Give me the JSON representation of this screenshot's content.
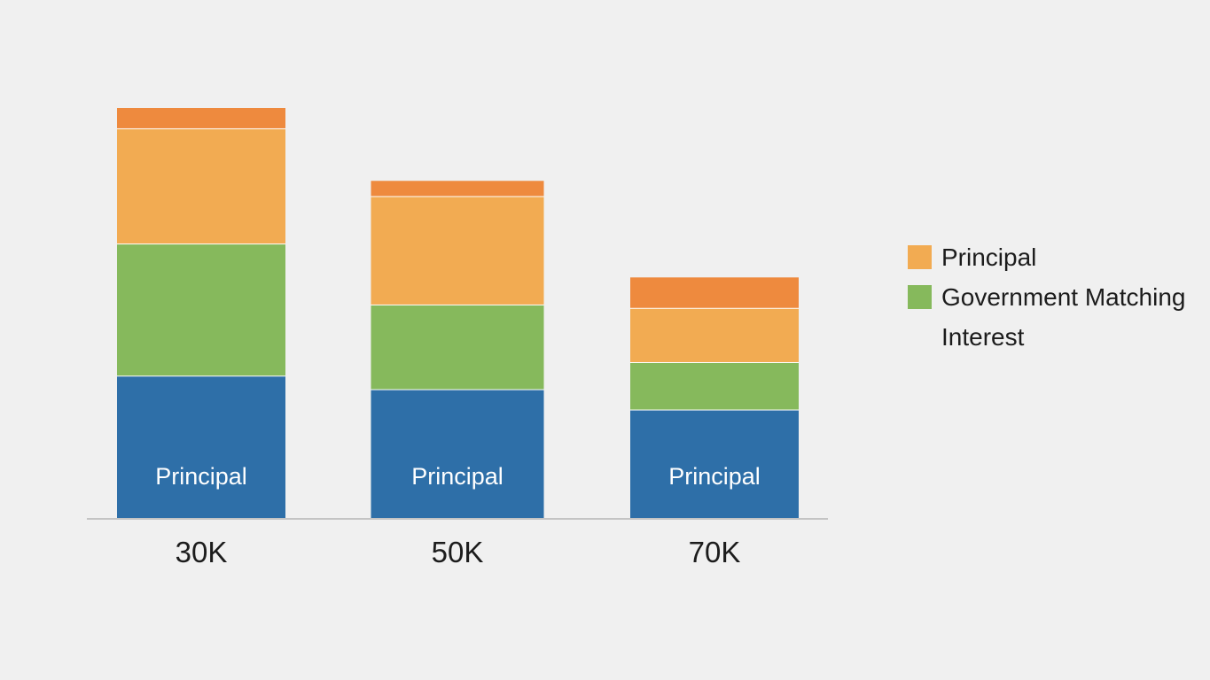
{
  "chart_data": {
    "type": "bar",
    "stacked": true,
    "categories": [
      "30K",
      "50K",
      "70K"
    ],
    "series": [
      {
        "name": "",
        "color": "#2e6fa8",
        "values": [
          42,
          38,
          32
        ]
      },
      {
        "name": "Government Matching",
        "color": "#86b95c",
        "values": [
          39,
          25,
          14
        ]
      },
      {
        "name": "Principal",
        "color": "#f2ab52",
        "values": [
          34,
          32,
          16
        ]
      },
      {
        "name": "Interest",
        "color": "#ee8a3e",
        "values": [
          6,
          4.5,
          9
        ]
      }
    ],
    "bar_label": "Principal",
    "ylim": [
      0,
      121
    ],
    "legend_position": "right",
    "grid": false,
    "title": "",
    "xlabel": "",
    "ylabel": ""
  },
  "legend": {
    "items": [
      {
        "label": "Principal",
        "color": "#f2ab52",
        "swatch": true
      },
      {
        "label": "Government Matching",
        "color": "#86b95c",
        "swatch": true
      },
      {
        "label": "Interest",
        "color": "#ee8a3e",
        "swatch": false
      }
    ]
  }
}
